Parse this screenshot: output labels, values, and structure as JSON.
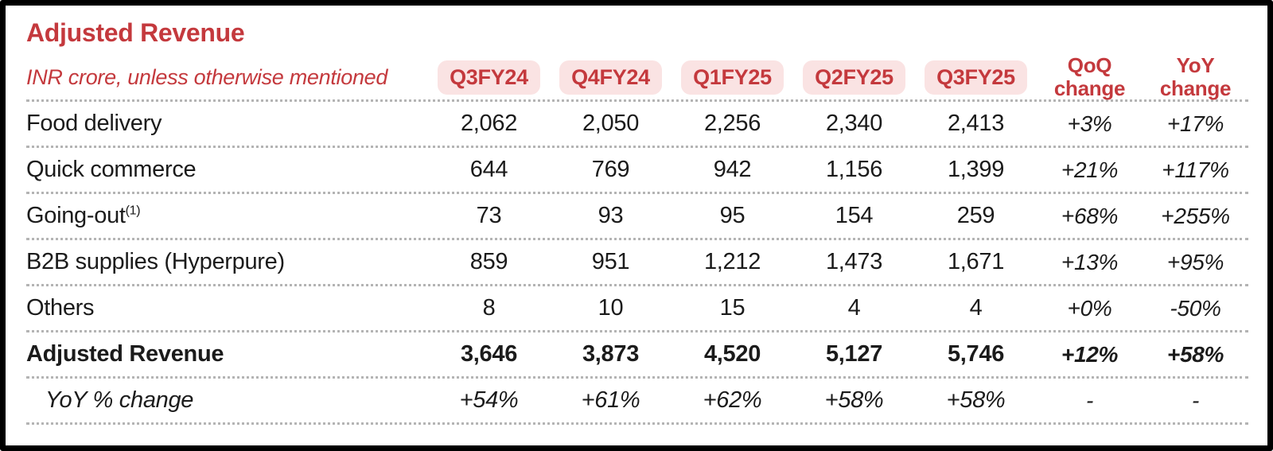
{
  "title": "Adjusted Revenue",
  "subtitle": "INR crore, unless otherwise mentioned",
  "colors": {
    "accent_red": "#c4393d",
    "pill_bg": "#fae3e3",
    "text": "#1b1b1b",
    "frame": "#000000",
    "dotted_line": "#b4b4b4"
  },
  "table": {
    "quarter_columns": [
      "Q3FY24",
      "Q4FY24",
      "Q1FY25",
      "Q2FY25",
      "Q3FY25"
    ],
    "qoq_header": {
      "line1": "QoQ",
      "line2": "change"
    },
    "yoy_header": {
      "line1": "YoY",
      "line2": "change"
    },
    "rows": [
      {
        "label": "Food delivery",
        "sup": "",
        "values": [
          "2,062",
          "2,050",
          "2,256",
          "2,340",
          "2,413"
        ],
        "qoq": "+3%",
        "yoy": "+17%"
      },
      {
        "label": "Quick commerce",
        "sup": "",
        "values": [
          "644",
          "769",
          "942",
          "1,156",
          "1,399"
        ],
        "qoq": "+21%",
        "yoy": "+117%"
      },
      {
        "label": "Going-out",
        "sup": "(1)",
        "values": [
          "73",
          "93",
          "95",
          "154",
          "259"
        ],
        "qoq": "+68%",
        "yoy": "+255%"
      },
      {
        "label": "B2B supplies (Hyperpure)",
        "sup": "",
        "values": [
          "859",
          "951",
          "1,212",
          "1,473",
          "1,671"
        ],
        "qoq": "+13%",
        "yoy": "+95%"
      },
      {
        "label": "Others",
        "sup": "",
        "values": [
          "8",
          "10",
          "15",
          "4",
          "4"
        ],
        "qoq": "+0%",
        "yoy": "-50%"
      },
      {
        "label": "Adjusted Revenue",
        "sup": "",
        "values": [
          "3,646",
          "3,873",
          "4,520",
          "5,127",
          "5,746"
        ],
        "qoq": "+12%",
        "yoy": "+58%"
      },
      {
        "label": "YoY % change",
        "sup": "",
        "values": [
          "+54%",
          "+61%",
          "+62%",
          "+58%",
          "+58%"
        ],
        "qoq": "-",
        "yoy": "-"
      }
    ]
  },
  "chart_data": {
    "type": "table",
    "title": "Adjusted Revenue",
    "unit_note": "INR crore, unless otherwise mentioned",
    "columns": [
      "Q3FY24",
      "Q4FY24",
      "Q1FY25",
      "Q2FY25",
      "Q3FY25",
      "QoQ change",
      "YoY change"
    ],
    "rows": [
      {
        "label": "Food delivery",
        "values": [
          2062,
          2050,
          2256,
          2340,
          2413
        ],
        "qoq_change": "+3%",
        "yoy_change": "+17%"
      },
      {
        "label": "Quick commerce",
        "values": [
          644,
          769,
          942,
          1156,
          1399
        ],
        "qoq_change": "+21%",
        "yoy_change": "+117%"
      },
      {
        "label": "Going-out (1)",
        "values": [
          73,
          93,
          95,
          154,
          259
        ],
        "qoq_change": "+68%",
        "yoy_change": "+255%"
      },
      {
        "label": "B2B supplies (Hyperpure)",
        "values": [
          859,
          951,
          1212,
          1473,
          1671
        ],
        "qoq_change": "+13%",
        "yoy_change": "+95%"
      },
      {
        "label": "Others",
        "values": [
          8,
          10,
          15,
          4,
          4
        ],
        "qoq_change": "+0%",
        "yoy_change": "-50%"
      },
      {
        "label": "Adjusted Revenue",
        "values": [
          3646,
          3873,
          4520,
          5127,
          5746
        ],
        "qoq_change": "+12%",
        "yoy_change": "+58%"
      },
      {
        "label": "YoY % change",
        "values": [
          "+54%",
          "+61%",
          "+62%",
          "+58%",
          "+58%"
        ],
        "qoq_change": "-",
        "yoy_change": "-"
      }
    ]
  }
}
